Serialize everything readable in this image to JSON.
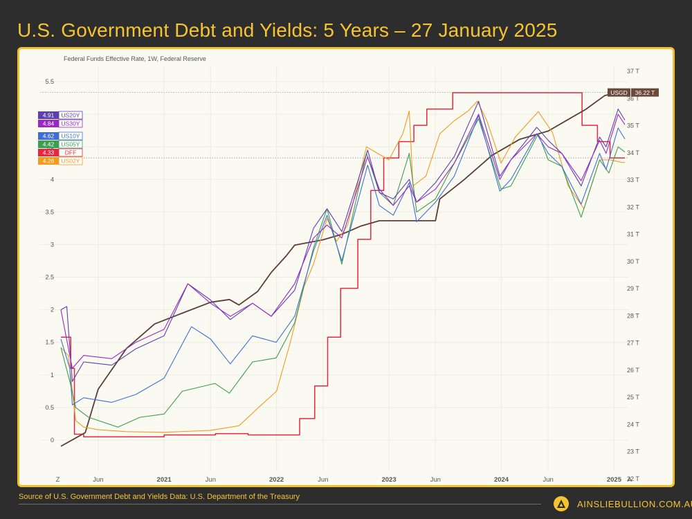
{
  "page": {
    "title": "U.S. Government Debt and Yields: 5 Years – 27 January 2025",
    "source": "Source of U.S. Government Debt and Yields Data: U.S. Department of the Treasury",
    "brand": "AINSLIEBULLION.COM.AU"
  },
  "colors": {
    "background": "#2d2d2d",
    "accent": "#f6c431",
    "panel": "#fafaf2"
  },
  "chart_data": {
    "type": "line",
    "title": "Federal Funds Effective Rate, 1W, Federal Reserve",
    "grid": true,
    "left_axis": {
      "range": [
        0,
        5.5
      ],
      "ticks": [
        0,
        0.5,
        1,
        1.5,
        2,
        2.5,
        3,
        3.5,
        4,
        4.5,
        5,
        5.5
      ],
      "tick_labels": [
        "0",
        "0.5",
        "1",
        "1.5",
        "2",
        "2.5",
        "3",
        "3.5",
        "4",
        "4.5",
        "5",
        "5.5"
      ]
    },
    "right_axis": {
      "range": [
        22,
        37
      ],
      "ticks": [
        22,
        23,
        24,
        25,
        26,
        27,
        28,
        29,
        30,
        31,
        32,
        33,
        34,
        35,
        36,
        37
      ],
      "tick_labels": [
        "22 T",
        "23 T",
        "24 T",
        "25 T",
        "26 T",
        "27 T",
        "28 T",
        "29 T",
        "30 T",
        "31 T",
        "32 T",
        "33 T",
        "34 T",
        "35 T",
        "36 T",
        "37 T"
      ]
    },
    "x_axis": {
      "range": [
        "2020-02-01",
        "2025-02-05"
      ],
      "ticks": [
        {
          "date": "2020-01-22",
          "label": "Z",
          "bold": false
        },
        {
          "date": "2020-06-01",
          "label": "Jun",
          "bold": false
        },
        {
          "date": "2021-01-01",
          "label": "2021",
          "bold": true
        },
        {
          "date": "2021-06-01",
          "label": "Jun",
          "bold": false
        },
        {
          "date": "2022-01-01",
          "label": "2022",
          "bold": true
        },
        {
          "date": "2022-06-01",
          "label": "Jun",
          "bold": false
        },
        {
          "date": "2023-01-01",
          "label": "2023",
          "bold": true
        },
        {
          "date": "2023-06-01",
          "label": "Jun",
          "bold": false
        },
        {
          "date": "2024-01-01",
          "label": "2024",
          "bold": true
        },
        {
          "date": "2024-06-01",
          "label": "Jun",
          "bold": false
        },
        {
          "date": "2025-01-01",
          "label": "2025",
          "bold": true
        },
        {
          "date": "2025-02-20",
          "label": "A",
          "bold": false
        }
      ]
    },
    "legend": {
      "placement": "top-left",
      "items": [
        {
          "value": "4.91",
          "name": "US20Y",
          "color": "#5c3fb0"
        },
        {
          "value": "4.84",
          "name": "US30Y",
          "color": "#9b27c4"
        },
        {
          "value": "4.62",
          "name": "US10Y",
          "color": "#3f6fd6"
        },
        {
          "value": "4.42",
          "name": "US05Y",
          "color": "#3c9e50"
        },
        {
          "value": "4.33",
          "name": "DFF",
          "color": "#e8273e"
        },
        {
          "value": "4.26",
          "name": "US02Y",
          "color": "#f59a1c"
        }
      ]
    },
    "debt_label": {
      "name": "USGD",
      "value": "36.22 T",
      "color": "#6b4a3a"
    },
    "reference_lines": [
      {
        "axis": "right",
        "value": 36.22
      },
      {
        "axis": "left",
        "value": 4.33
      }
    ],
    "series": [
      {
        "name": "DFF",
        "axis": "left",
        "color": "#e8273e",
        "width": 1.5,
        "step": true,
        "x": [
          "2020-02-01",
          "2020-03-04",
          "2020-03-16",
          "2020-04-15",
          "2021-01-01",
          "2021-06-17",
          "2021-10-01",
          "2022-01-01",
          "2022-03-17",
          "2022-05-05",
          "2022-06-16",
          "2022-07-28",
          "2022-09-22",
          "2022-11-03",
          "2022-12-15",
          "2023-02-02",
          "2023-03-23",
          "2023-05-04",
          "2023-07-27",
          "2024-09-19",
          "2024-11-08",
          "2024-12-19",
          "2025-02-05"
        ],
        "y": [
          1.58,
          1.1,
          0.09,
          0.05,
          0.08,
          0.1,
          0.08,
          0.08,
          0.33,
          0.83,
          1.58,
          2.33,
          3.08,
          3.83,
          4.33,
          4.58,
          4.83,
          5.08,
          5.33,
          4.83,
          4.58,
          4.33,
          4.33
        ]
      },
      {
        "name": "USGD",
        "axis": "right",
        "color": "#5a3e36",
        "width": 1.8,
        "step": false,
        "x": [
          "2020-02-01",
          "2020-04-20",
          "2020-06-01",
          "2020-09-01",
          "2020-12-01",
          "2021-03-01",
          "2021-06-01",
          "2021-08-01",
          "2021-09-01",
          "2021-11-01",
          "2021-12-15",
          "2022-02-01",
          "2022-03-01",
          "2022-06-01",
          "2022-08-01",
          "2022-10-01",
          "2022-12-01",
          "2023-01-19",
          "2023-06-01",
          "2023-06-15",
          "2023-09-01",
          "2023-12-01",
          "2024-03-01",
          "2024-06-01",
          "2024-08-01",
          "2024-10-01",
          "2024-12-01",
          "2025-01-10",
          "2025-02-05"
        ],
        "y": [
          23.2,
          23.7,
          25.3,
          26.8,
          27.7,
          28.1,
          28.5,
          28.6,
          28.4,
          28.9,
          29.6,
          30.2,
          30.6,
          30.8,
          31.0,
          31.3,
          31.5,
          31.5,
          31.5,
          32.3,
          33.0,
          33.9,
          34.5,
          34.8,
          35.2,
          35.6,
          36.1,
          36.22,
          36.22
        ]
      },
      {
        "name": "US02Y",
        "axis": "left",
        "color": "#f59a1c",
        "width": 1.1,
        "step": false,
        "x": [
          "2020-02-01",
          "2020-02-25",
          "2020-03-20",
          "2020-04-15",
          "2020-06-01",
          "2020-09-01",
          "2021-01-01",
          "2021-06-01",
          "2021-09-01",
          "2021-11-15",
          "2022-01-01",
          "2022-02-15",
          "2022-03-31",
          "2022-05-01",
          "2022-06-14",
          "2022-07-15",
          "2022-08-20",
          "2022-10-20",
          "2022-11-25",
          "2023-01-01",
          "2023-02-15",
          "2023-03-08",
          "2023-03-20",
          "2023-05-01",
          "2023-06-15",
          "2023-08-01",
          "2023-09-15",
          "2023-10-15",
          "2023-11-15",
          "2023-12-31",
          "2024-02-15",
          "2024-04-30",
          "2024-06-15",
          "2024-08-05",
          "2024-09-25",
          "2024-11-15",
          "2024-12-20",
          "2025-01-27",
          "2025-02-05"
        ],
        "y": [
          1.42,
          1.3,
          0.3,
          0.2,
          0.16,
          0.13,
          0.12,
          0.15,
          0.22,
          0.55,
          0.75,
          1.5,
          2.35,
          2.7,
          3.4,
          3.05,
          3.3,
          4.5,
          4.4,
          4.3,
          4.7,
          5.05,
          3.9,
          4.05,
          4.7,
          4.9,
          5.05,
          5.2,
          4.9,
          4.25,
          4.65,
          5.04,
          4.72,
          3.9,
          3.55,
          4.3,
          4.3,
          4.26,
          4.26
        ]
      },
      {
        "name": "US05Y",
        "axis": "left",
        "color": "#3c9e50",
        "width": 1.1,
        "step": false,
        "x": [
          "2020-02-01",
          "2020-03-01",
          "2020-03-20",
          "2020-05-01",
          "2020-08-04",
          "2020-10-15",
          "2021-01-01",
          "2021-03-01",
          "2021-06-15",
          "2021-08-01",
          "2021-10-15",
          "2021-12-31",
          "2022-03-01",
          "2022-05-01",
          "2022-06-14",
          "2022-08-01",
          "2022-10-20",
          "2022-12-01",
          "2023-01-15",
          "2023-03-08",
          "2023-04-01",
          "2023-06-01",
          "2023-07-15",
          "2023-10-19",
          "2023-12-31",
          "2024-02-01",
          "2024-04-30",
          "2024-06-01",
          "2024-07-15",
          "2024-09-16",
          "2024-11-15",
          "2024-12-15",
          "2025-01-14",
          "2025-02-05"
        ],
        "y": [
          1.42,
          0.9,
          0.5,
          0.35,
          0.2,
          0.35,
          0.4,
          0.75,
          0.87,
          0.72,
          1.2,
          1.26,
          1.8,
          2.95,
          3.55,
          2.7,
          4.4,
          3.8,
          3.6,
          4.4,
          3.5,
          3.7,
          4.1,
          4.93,
          3.85,
          3.9,
          4.7,
          4.3,
          4.2,
          3.42,
          4.3,
          4.1,
          4.5,
          4.42
        ]
      },
      {
        "name": "US10Y",
        "axis": "left",
        "color": "#3f6fd6",
        "width": 1.1,
        "step": false,
        "x": [
          "2020-02-01",
          "2020-03-01",
          "2020-03-09",
          "2020-04-15",
          "2020-07-15",
          "2020-10-01",
          "2021-01-01",
          "2021-03-31",
          "2021-06-01",
          "2021-08-04",
          "2021-10-15",
          "2021-12-31",
          "2022-03-01",
          "2022-05-01",
          "2022-06-14",
          "2022-08-01",
          "2022-10-24",
          "2022-12-01",
          "2023-01-15",
          "2023-03-08",
          "2023-04-01",
          "2023-06-01",
          "2023-08-01",
          "2023-10-19",
          "2023-12-27",
          "2024-02-01",
          "2024-04-25",
          "2024-06-01",
          "2024-07-15",
          "2024-09-16",
          "2024-11-15",
          "2024-12-06",
          "2025-01-14",
          "2025-02-05"
        ],
        "y": [
          1.55,
          1.1,
          0.54,
          0.65,
          0.58,
          0.7,
          0.95,
          1.74,
          1.55,
          1.17,
          1.6,
          1.5,
          1.9,
          2.9,
          3.45,
          2.75,
          4.22,
          3.6,
          3.45,
          3.95,
          3.35,
          3.65,
          4.05,
          4.98,
          3.82,
          4.0,
          4.7,
          4.4,
          4.2,
          3.62,
          4.4,
          4.15,
          4.79,
          4.62
        ]
      },
      {
        "name": "US20Y",
        "axis": "left",
        "color": "#5c3fb0",
        "width": 1.1,
        "step": false,
        "x": [
          "2020-02-01",
          "2020-02-20",
          "2020-03-09",
          "2020-04-15",
          "2020-07-15",
          "2020-10-01",
          "2021-01-01",
          "2021-03-19",
          "2021-06-01",
          "2021-08-04",
          "2021-10-15",
          "2021-12-15",
          "2022-03-01",
          "2022-05-01",
          "2022-06-14",
          "2022-08-01",
          "2022-10-24",
          "2022-12-01",
          "2023-01-15",
          "2023-03-08",
          "2023-04-01",
          "2023-06-01",
          "2023-08-01",
          "2023-10-19",
          "2023-12-27",
          "2024-02-01",
          "2024-04-25",
          "2024-06-01",
          "2024-07-15",
          "2024-09-16",
          "2024-11-15",
          "2024-12-06",
          "2025-01-14",
          "2025-02-05"
        ],
        "y": [
          2.0,
          2.05,
          0.9,
          1.2,
          1.15,
          1.4,
          1.6,
          2.4,
          2.15,
          1.85,
          2.1,
          1.9,
          2.3,
          3.25,
          3.55,
          3.2,
          4.45,
          3.8,
          3.7,
          4.0,
          3.65,
          3.95,
          4.35,
          5.2,
          4.05,
          4.3,
          4.8,
          4.6,
          4.4,
          3.9,
          4.65,
          4.5,
          5.08,
          4.91
        ]
      },
      {
        "name": "US30Y",
        "axis": "left",
        "color": "#9b27c4",
        "width": 1.1,
        "step": false,
        "x": [
          "2020-02-01",
          "2020-03-09",
          "2020-04-15",
          "2020-07-15",
          "2020-10-01",
          "2021-01-01",
          "2021-03-19",
          "2021-06-01",
          "2021-08-04",
          "2021-10-15",
          "2021-12-15",
          "2022-03-01",
          "2022-05-01",
          "2022-06-14",
          "2022-08-01",
          "2022-10-24",
          "2022-12-01",
          "2023-01-15",
          "2023-03-08",
          "2023-04-01",
          "2023-06-01",
          "2023-08-01",
          "2023-10-19",
          "2023-12-27",
          "2024-02-01",
          "2024-04-25",
          "2024-06-01",
          "2024-07-15",
          "2024-09-16",
          "2024-11-15",
          "2024-12-06",
          "2025-01-14",
          "2025-02-05"
        ],
        "y": [
          2.0,
          1.1,
          1.3,
          1.25,
          1.5,
          1.7,
          2.4,
          2.1,
          1.9,
          2.1,
          1.9,
          2.4,
          3.1,
          3.3,
          3.1,
          4.35,
          3.85,
          3.6,
          3.9,
          3.65,
          3.85,
          4.25,
          5.0,
          4.0,
          4.3,
          4.7,
          4.5,
          4.4,
          3.98,
          4.6,
          4.4,
          5.0,
          4.84
        ]
      }
    ]
  }
}
